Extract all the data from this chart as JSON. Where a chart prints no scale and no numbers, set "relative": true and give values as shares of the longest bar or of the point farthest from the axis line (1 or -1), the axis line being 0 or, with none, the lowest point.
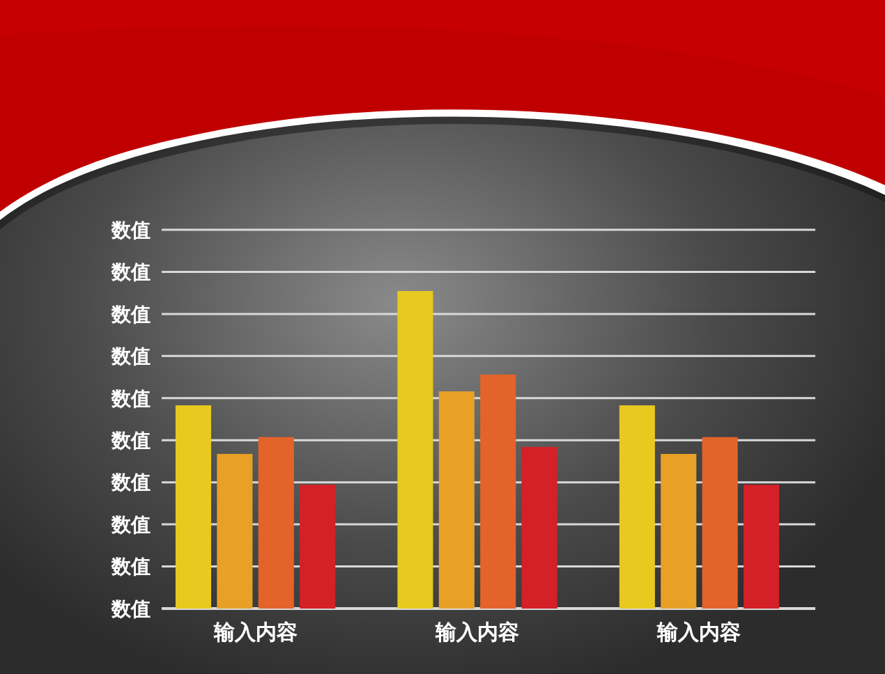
{
  "chart_data": {
    "type": "bar",
    "relative": true,
    "categories": [
      "输入内容",
      "输入内容",
      "输入内容"
    ],
    "series": [
      {
        "color": "#e8c91f",
        "values": [
          0.64,
          1,
          0.64
        ]
      },
      {
        "color": "#e8a026",
        "values": [
          0.487,
          0.684,
          0.487
        ]
      },
      {
        "color": "#e4632a",
        "values": [
          0.54,
          0.737,
          0.54
        ]
      },
      {
        "color": "#d42027",
        "values": [
          0.39,
          0.509,
          0.39
        ]
      }
    ],
    "grid": "y",
    "annotations": [
      "数值",
      "数值",
      "数值",
      "数值",
      "数值",
      "数值",
      "数值",
      "数值",
      "数值",
      "数值"
    ]
  }
}
